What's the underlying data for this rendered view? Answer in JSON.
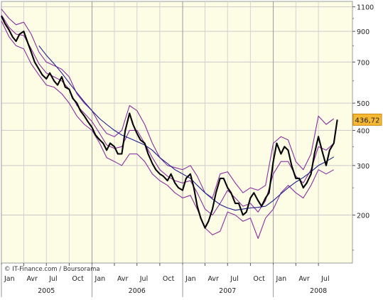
{
  "chart_data": {
    "type": "line",
    "title": "",
    "xlabel": "",
    "ylabel": "",
    "y_scale": "log",
    "ylim": [
      135,
      1150
    ],
    "xlim": [
      "2005-01-01",
      "2008-11-15"
    ],
    "grid": true,
    "y_ticks": [
      200,
      300,
      400,
      500,
      700,
      900,
      1100
    ],
    "y_tick_labels": [
      "200",
      "300",
      "400",
      "500",
      "700",
      "900",
      "1100"
    ],
    "x_ticks": [
      {
        "label": "Jan",
        "date": "2005-01-01"
      },
      {
        "label": "Avr",
        "date": "2005-04-01"
      },
      {
        "label": "Jul",
        "date": "2005-07-01"
      },
      {
        "label": "Oct",
        "date": "2005-10-01"
      },
      {
        "label": "Jan",
        "date": "2006-01-01"
      },
      {
        "label": "Avr",
        "date": "2006-04-01"
      },
      {
        "label": "Jul",
        "date": "2006-07-01"
      },
      {
        "label": "Oct",
        "date": "2006-10-01"
      },
      {
        "label": "Jan",
        "date": "2007-01-01"
      },
      {
        "label": "Avr",
        "date": "2007-04-01"
      },
      {
        "label": "Jul",
        "date": "2007-07-01"
      },
      {
        "label": "Oct",
        "date": "2007-10-01"
      },
      {
        "label": "Jan",
        "date": "2008-01-01"
      },
      {
        "label": "Avr",
        "date": "2008-04-01"
      },
      {
        "label": "Jul",
        "date": "2008-07-01"
      }
    ],
    "year_labels": [
      {
        "label": "2005",
        "date": "2005-07-01"
      },
      {
        "label": "2006",
        "date": "2006-07-01"
      },
      {
        "label": "2007",
        "date": "2007-07-01"
      },
      {
        "label": "2008",
        "date": "2008-07-01"
      }
    ],
    "last_value": {
      "label": "436,72",
      "value": 436.72
    },
    "source": "© IT-Finance.com / Boursorama",
    "colors": {
      "price": "#000000",
      "bands": "#8b2c9e",
      "moving_average": "#1c1c8c",
      "plot_background": "#fdfde6",
      "label_badge": "#f5b830"
    },
    "series": [
      {
        "name": "",
        "role": "price",
        "x": [
          "2005-01-01",
          "2005-01-15",
          "2005-02-01",
          "2005-02-15",
          "2005-03-01",
          "2005-03-15",
          "2005-04-01",
          "2005-04-15",
          "2005-05-01",
          "2005-05-15",
          "2005-06-01",
          "2005-06-15",
          "2005-07-01",
          "2005-07-15",
          "2005-08-01",
          "2005-08-15",
          "2005-09-01",
          "2005-09-15",
          "2005-10-01",
          "2005-10-15",
          "2005-11-01",
          "2005-11-15",
          "2005-12-01",
          "2005-12-15",
          "2006-01-01",
          "2006-01-15",
          "2006-02-01",
          "2006-02-15",
          "2006-03-01",
          "2006-03-15",
          "2006-04-01",
          "2006-04-15",
          "2006-05-01",
          "2006-05-15",
          "2006-06-01",
          "2006-06-15",
          "2006-07-01",
          "2006-07-15",
          "2006-08-01",
          "2006-08-15",
          "2006-09-01",
          "2006-09-15",
          "2006-10-01",
          "2006-10-15",
          "2006-11-01",
          "2006-11-15",
          "2006-12-01",
          "2006-12-15",
          "2007-01-01",
          "2007-01-15",
          "2007-02-01",
          "2007-02-15",
          "2007-03-01",
          "2007-03-15",
          "2007-04-01",
          "2007-04-15",
          "2007-05-01",
          "2007-05-15",
          "2007-06-01",
          "2007-06-15",
          "2007-07-01",
          "2007-07-15",
          "2007-08-01",
          "2007-08-15",
          "2007-09-01",
          "2007-09-15",
          "2007-10-01",
          "2007-10-15",
          "2007-11-01",
          "2007-11-15",
          "2007-12-01",
          "2007-12-15",
          "2008-01-01",
          "2008-01-15",
          "2008-02-01",
          "2008-02-15",
          "2008-03-01",
          "2008-03-15",
          "2008-04-01",
          "2008-04-15",
          "2008-05-01",
          "2008-05-15",
          "2008-06-01",
          "2008-06-15",
          "2008-07-01",
          "2008-07-15",
          "2008-08-01",
          "2008-08-15",
          "2008-09-01",
          "2008-09-15"
        ],
        "values": [
          1020,
          960,
          910,
          860,
          830,
          880,
          900,
          830,
          760,
          700,
          660,
          630,
          610,
          640,
          600,
          580,
          620,
          570,
          560,
          520,
          500,
          470,
          450,
          430,
          410,
          385,
          370,
          360,
          340,
          360,
          350,
          330,
          330,
          400,
          460,
          420,
          390,
          370,
          360,
          330,
          305,
          290,
          280,
          275,
          265,
          280,
          260,
          250,
          245,
          270,
          280,
          250,
          215,
          195,
          180,
          190,
          210,
          240,
          270,
          270,
          250,
          240,
          220,
          220,
          200,
          205,
          230,
          240,
          225,
          215,
          230,
          240,
          310,
          360,
          330,
          350,
          340,
          300,
          270,
          270,
          250,
          260,
          280,
          330,
          380,
          340,
          300,
          340,
          360,
          436.72
        ]
      },
      {
        "name": "",
        "role": "band_upper",
        "x": [
          "2005-01-01",
          "2005-02-01",
          "2005-03-01",
          "2005-04-01",
          "2005-05-01",
          "2005-06-01",
          "2005-07-01",
          "2005-08-01",
          "2005-09-01",
          "2005-10-01",
          "2005-11-01",
          "2005-12-01",
          "2006-01-01",
          "2006-02-01",
          "2006-03-01",
          "2006-04-01",
          "2006-05-01",
          "2006-06-01",
          "2006-07-01",
          "2006-08-01",
          "2006-09-01",
          "2006-10-01",
          "2006-11-01",
          "2006-12-01",
          "2007-01-01",
          "2007-02-01",
          "2007-03-01",
          "2007-04-01",
          "2007-05-01",
          "2007-06-01",
          "2007-07-01",
          "2007-08-01",
          "2007-09-01",
          "2007-10-01",
          "2007-11-01",
          "2007-12-01",
          "2008-01-01",
          "2008-02-01",
          "2008-03-01",
          "2008-04-01",
          "2008-05-01",
          "2008-06-01",
          "2008-07-01",
          "2008-08-01",
          "2008-09-01"
        ],
        "values": [
          1080,
          1000,
          950,
          970,
          880,
          760,
          700,
          680,
          660,
          620,
          540,
          500,
          470,
          420,
          390,
          380,
          400,
          490,
          470,
          420,
          360,
          320,
          300,
          295,
          290,
          300,
          275,
          240,
          230,
          280,
          285,
          260,
          240,
          250,
          245,
          255,
          360,
          380,
          370,
          310,
          290,
          330,
          450,
          420,
          440
        ]
      },
      {
        "name": "",
        "role": "band_lower",
        "x": [
          "2005-01-01",
          "2005-02-01",
          "2005-03-01",
          "2005-04-01",
          "2005-05-01",
          "2005-06-01",
          "2005-07-01",
          "2005-08-01",
          "2005-09-01",
          "2005-10-01",
          "2005-11-01",
          "2005-12-01",
          "2006-01-01",
          "2006-02-01",
          "2006-03-01",
          "2006-04-01",
          "2006-05-01",
          "2006-06-01",
          "2006-07-01",
          "2006-08-01",
          "2006-09-01",
          "2006-10-01",
          "2006-11-01",
          "2006-12-01",
          "2007-01-01",
          "2007-02-01",
          "2007-03-01",
          "2007-04-01",
          "2007-05-01",
          "2007-06-01",
          "2007-07-01",
          "2007-08-01",
          "2007-09-01",
          "2007-10-01",
          "2007-11-01",
          "2007-12-01",
          "2008-01-01",
          "2008-02-01",
          "2008-03-01",
          "2008-04-01",
          "2008-05-01",
          "2008-06-01",
          "2008-07-01",
          "2008-08-01",
          "2008-09-01"
        ],
        "values": [
          980,
          860,
          800,
          780,
          690,
          630,
          580,
          570,
          540,
          500,
          450,
          420,
          400,
          360,
          320,
          310,
          300,
          330,
          330,
          310,
          280,
          265,
          255,
          240,
          230,
          235,
          210,
          180,
          170,
          175,
          205,
          200,
          190,
          195,
          165,
          195,
          210,
          240,
          255,
          240,
          230,
          255,
          290,
          280,
          290
        ]
      },
      {
        "name": "",
        "role": "band_middle",
        "x": [
          "2005-01-01",
          "2005-02-01",
          "2005-03-01",
          "2005-04-01",
          "2005-05-01",
          "2005-06-01",
          "2005-07-01",
          "2005-08-01",
          "2005-09-01",
          "2005-10-01",
          "2005-11-01",
          "2005-12-01",
          "2006-01-01",
          "2006-02-01",
          "2006-03-01",
          "2006-04-01",
          "2006-05-01",
          "2006-06-01",
          "2006-07-01",
          "2006-08-01",
          "2006-09-01",
          "2006-10-01",
          "2006-11-01",
          "2006-12-01",
          "2007-01-01",
          "2007-02-01",
          "2007-03-01",
          "2007-04-01",
          "2007-05-01",
          "2007-06-01",
          "2007-07-01",
          "2007-08-01",
          "2007-09-01",
          "2007-10-01",
          "2007-11-01",
          "2007-12-01",
          "2008-01-01",
          "2008-02-01",
          "2008-03-01",
          "2008-04-01",
          "2008-05-01",
          "2008-06-01",
          "2008-07-01",
          "2008-08-01",
          "2008-09-01"
        ],
        "values": [
          1030,
          930,
          880,
          870,
          780,
          690,
          640,
          620,
          600,
          560,
          490,
          460,
          430,
          390,
          355,
          345,
          350,
          400,
          400,
          360,
          320,
          290,
          275,
          265,
          260,
          265,
          240,
          210,
          200,
          220,
          245,
          230,
          215,
          220,
          205,
          225,
          280,
          310,
          310,
          275,
          260,
          290,
          350,
          340,
          360
        ]
      },
      {
        "name": "",
        "role": "moving_average",
        "x": [
          "2005-06-01",
          "2005-07-01",
          "2005-08-01",
          "2005-09-01",
          "2005-10-01",
          "2005-11-01",
          "2005-12-01",
          "2006-01-01",
          "2006-02-01",
          "2006-03-01",
          "2006-04-01",
          "2006-05-01",
          "2006-06-01",
          "2006-07-01",
          "2006-08-01",
          "2006-09-01",
          "2006-10-01",
          "2006-11-01",
          "2006-12-01",
          "2007-01-01",
          "2007-02-01",
          "2007-03-01",
          "2007-04-01",
          "2007-05-01",
          "2007-06-01",
          "2007-07-01",
          "2007-08-01",
          "2007-09-01",
          "2007-10-01",
          "2007-11-01",
          "2007-12-01",
          "2008-01-01",
          "2008-02-01",
          "2008-03-01",
          "2008-04-01",
          "2008-05-01",
          "2008-06-01",
          "2008-07-01",
          "2008-08-01",
          "2008-09-01"
        ],
        "values": [
          800,
          740,
          690,
          640,
          590,
          545,
          505,
          470,
          440,
          420,
          400,
          385,
          375,
          365,
          355,
          340,
          320,
          305,
          290,
          280,
          270,
          255,
          240,
          228,
          218,
          212,
          208,
          210,
          212,
          213,
          215,
          225,
          238,
          250,
          262,
          272,
          285,
          300,
          310,
          322
        ]
      }
    ]
  }
}
